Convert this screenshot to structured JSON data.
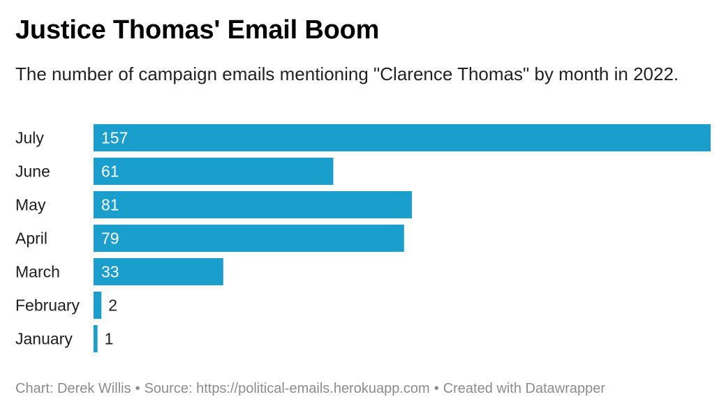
{
  "header": {
    "title": "Justice Thomas' Email Boom",
    "subtitle": "The number of campaign emails mentioning \"Clarence Thomas\" by month in 2022."
  },
  "footer": {
    "chart_credit": "Chart: Derek Willis",
    "separator": "•",
    "source": "Source: https://political-emails.herokuapp.com",
    "created_with": "Created with Datawrapper"
  },
  "colors": {
    "bar": "#1a9fcc",
    "value_inside": "#ffffff",
    "value_outside": "#1d1d1d"
  },
  "chart_data": {
    "type": "bar",
    "orientation": "horizontal",
    "categories": [
      "July",
      "June",
      "May",
      "April",
      "March",
      "February",
      "January"
    ],
    "values": [
      157,
      61,
      81,
      79,
      33,
      2,
      1
    ],
    "title": "Justice Thomas' Email Boom",
    "subtitle": "The number of campaign emails mentioning \"Clarence Thomas\" by month in 2022.",
    "xlim": [
      0,
      157
    ],
    "grid": false,
    "legend": "none"
  }
}
